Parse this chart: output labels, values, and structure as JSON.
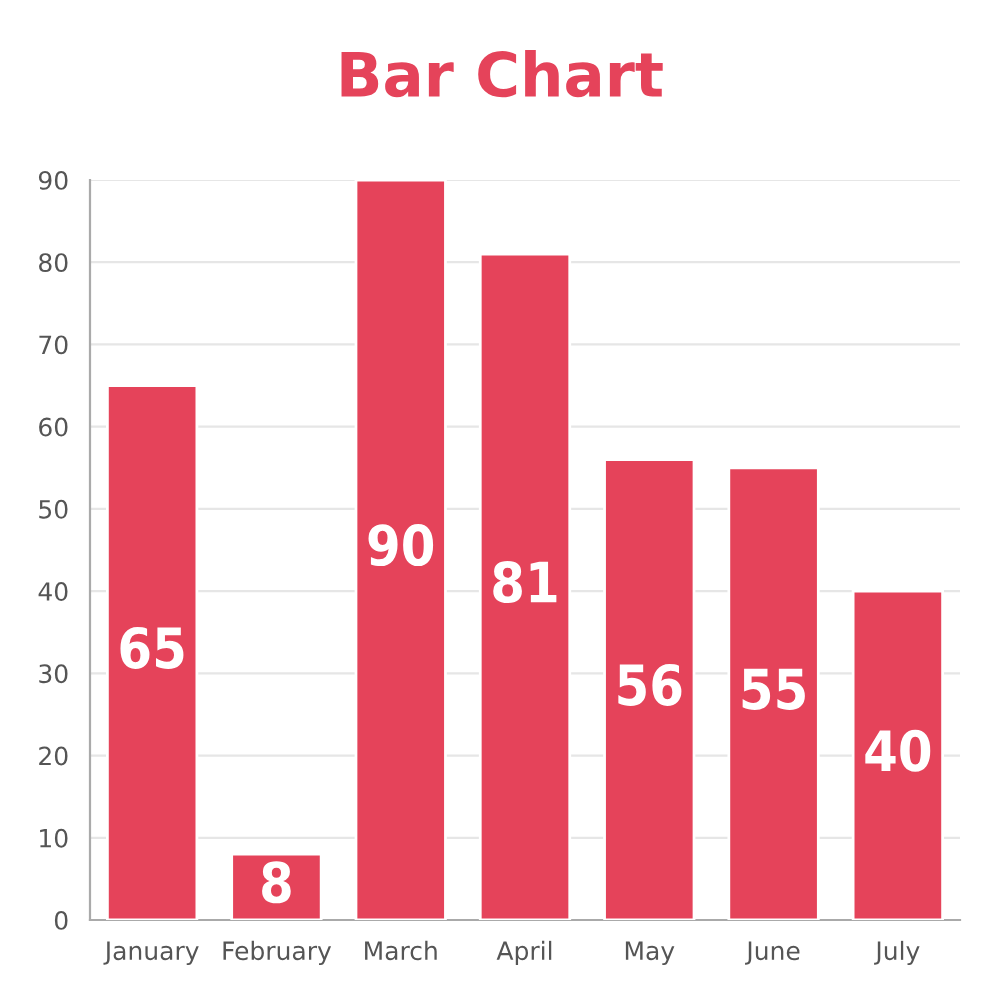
{
  "chart_data": {
    "type": "bar",
    "title": "Bar Chart",
    "categories": [
      "January",
      "February",
      "March",
      "April",
      "May",
      "June",
      "July"
    ],
    "values": [
      65,
      8,
      90,
      81,
      56,
      55,
      40
    ],
    "color": "#e5435a",
    "ylim": [
      0,
      90
    ],
    "yticks": [
      0,
      10,
      20,
      30,
      40,
      50,
      60,
      70,
      80,
      90
    ],
    "grid": "y",
    "data_labels": true
  }
}
